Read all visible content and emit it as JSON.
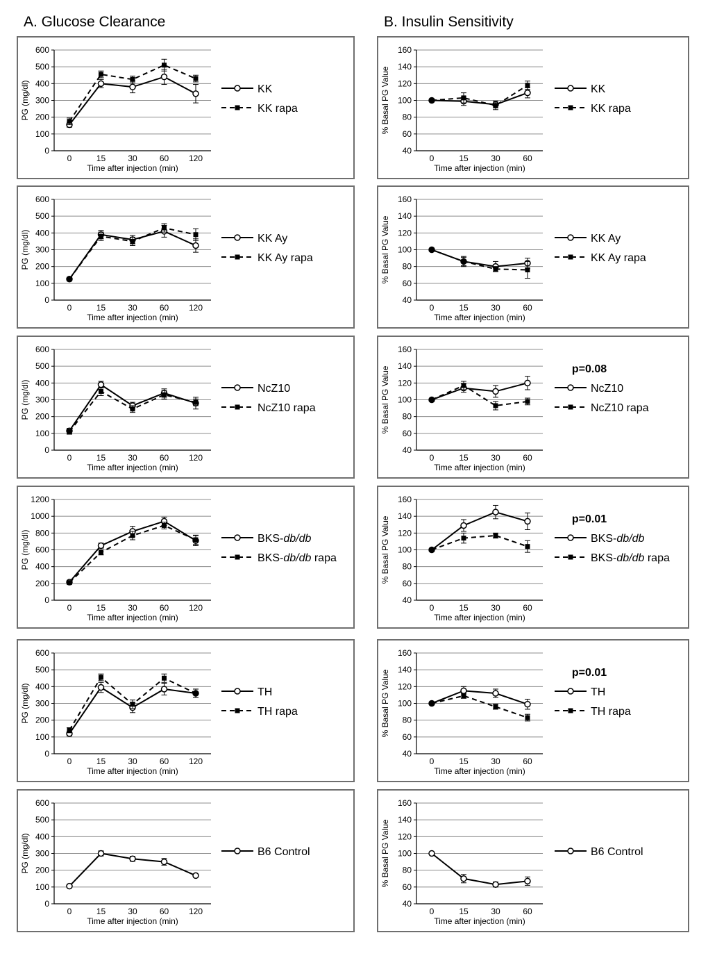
{
  "headers": {
    "a": "A. Glucose Clearance",
    "b": "B. Insulin Sensitivity"
  },
  "chart_data": [
    {
      "type": "line",
      "panel": "A",
      "x": [
        "0",
        "15",
        "30",
        "60",
        "120"
      ],
      "ylabel": "PG (mg/dl)",
      "xlabel": "Time after injection (min)",
      "ylim": [
        0,
        600
      ],
      "yticks": [
        0,
        100,
        200,
        300,
        400,
        500,
        600
      ],
      "pvalue": "",
      "series": [
        {
          "name": "KK",
          "style": "open-circle-solid",
          "values": [
            155,
            400,
            380,
            440,
            340
          ],
          "errors": [
            15,
            25,
            35,
            45,
            55
          ]
        },
        {
          "name": "KK rapa",
          "style": "filled-square-dashed",
          "values": [
            175,
            455,
            425,
            510,
            430
          ],
          "errors": [
            20,
            20,
            20,
            35,
            20
          ]
        }
      ]
    },
    {
      "type": "line",
      "panel": "B",
      "x": [
        "0",
        "15",
        "30",
        "60"
      ],
      "ylabel": "% Basal PG Value",
      "xlabel": "Time after injection (min)",
      "ylim": [
        40,
        160
      ],
      "yticks": [
        40,
        60,
        80,
        100,
        120,
        140,
        160
      ],
      "pvalue": "",
      "series": [
        {
          "name": "KK",
          "style": "open-circle-solid",
          "values": [
            100,
            99,
            95,
            109
          ],
          "errors": [
            0,
            5,
            4,
            6
          ]
        },
        {
          "name": "KK rapa",
          "style": "filled-square-dashed",
          "values": [
            100,
            103,
            94,
            118
          ],
          "errors": [
            0,
            6,
            5,
            5
          ]
        }
      ]
    },
    {
      "type": "line",
      "panel": "A",
      "x": [
        "0",
        "15",
        "30",
        "60",
        "120"
      ],
      "ylabel": "PG (mg/dl)",
      "xlabel": "Time after injection (min)",
      "ylim": [
        0,
        600
      ],
      "yticks": [
        0,
        100,
        200,
        300,
        400,
        500,
        600
      ],
      "pvalue": "",
      "series": [
        {
          "name": "KK Ay",
          "style": "open-circle-solid",
          "values": [
            125,
            390,
            360,
            410,
            325
          ],
          "errors": [
            10,
            25,
            25,
            35,
            40
          ]
        },
        {
          "name": "KK Ay rapa",
          "style": "filled-square-dashed",
          "values": [
            125,
            380,
            350,
            430,
            390
          ],
          "errors": [
            10,
            25,
            25,
            25,
            35
          ]
        }
      ]
    },
    {
      "type": "line",
      "panel": "B",
      "x": [
        "0",
        "15",
        "30",
        "60"
      ],
      "ylabel": "% Basal PG Value",
      "xlabel": "Time after injection (min)",
      "ylim": [
        40,
        160
      ],
      "yticks": [
        40,
        60,
        80,
        100,
        120,
        140,
        160
      ],
      "pvalue": "",
      "series": [
        {
          "name": "KK Ay",
          "style": "open-circle-solid",
          "values": [
            100,
            86,
            80,
            84
          ],
          "errors": [
            0,
            6,
            6,
            6
          ]
        },
        {
          "name": "KK Ay rapa",
          "style": "filled-square-dashed",
          "values": [
            100,
            86,
            77,
            76
          ],
          "errors": [
            0,
            5,
            3,
            10
          ]
        }
      ]
    },
    {
      "type": "line",
      "panel": "A",
      "x": [
        "0",
        "15",
        "30",
        "60",
        "120"
      ],
      "ylabel": "PG (mg/dl)",
      "xlabel": "Time after injection (min)",
      "ylim": [
        0,
        600
      ],
      "yticks": [
        0,
        100,
        200,
        300,
        400,
        500,
        600
      ],
      "pvalue": "",
      "series": [
        {
          "name": "NcZ10",
          "style": "open-circle-solid",
          "values": [
            115,
            390,
            265,
            340,
            280
          ],
          "errors": [
            15,
            20,
            20,
            25,
            35
          ]
        },
        {
          "name": "NcZ10 rapa",
          "style": "filled-square-dashed",
          "values": [
            110,
            350,
            245,
            330,
            285
          ],
          "errors": [
            15,
            25,
            20,
            25,
            20
          ]
        }
      ]
    },
    {
      "type": "line",
      "panel": "B",
      "x": [
        "0",
        "15",
        "30",
        "60"
      ],
      "ylabel": "% Basal PG Value",
      "xlabel": "Time after injection (min)",
      "ylim": [
        40,
        160
      ],
      "yticks": [
        40,
        60,
        80,
        100,
        120,
        140,
        160
      ],
      "pvalue": "p=0.08",
      "series": [
        {
          "name": "NcZ10",
          "style": "open-circle-solid",
          "values": [
            100,
            114,
            110,
            120
          ],
          "errors": [
            0,
            5,
            7,
            8
          ]
        },
        {
          "name": "NcZ10 rapa",
          "style": "filled-square-dashed",
          "values": [
            100,
            117,
            93,
            98
          ],
          "errors": [
            0,
            5,
            5,
            4
          ]
        }
      ]
    },
    {
      "type": "line",
      "panel": "A",
      "x": [
        "0",
        "15",
        "30",
        "60",
        "120"
      ],
      "ylabel": "PG (mg/dl)",
      "xlabel": "Time after injection (min)",
      "ylim": [
        0,
        1200
      ],
      "yticks": [
        0,
        200,
        400,
        600,
        800,
        1000,
        1200
      ],
      "pvalue": "",
      "series": [
        {
          "name": "BKS-db/db",
          "legend_prefix": "BKS-",
          "legend_italic": "db/db",
          "legend_suffix": "",
          "style": "open-circle-solid",
          "values": [
            215,
            650,
            820,
            940,
            710
          ],
          "errors": [
            20,
            30,
            60,
            50,
            60
          ]
        },
        {
          "name": "BKS-db/db rapa",
          "legend_prefix": "BKS-",
          "legend_italic": "db/db",
          "legend_suffix": " rapa",
          "style": "filled-square-dashed",
          "values": [
            210,
            570,
            770,
            890,
            720
          ],
          "errors": [
            20,
            30,
            50,
            40,
            55
          ]
        }
      ]
    },
    {
      "type": "line",
      "panel": "B",
      "x": [
        "0",
        "15",
        "30",
        "60"
      ],
      "ylabel": "% Basal PG Value",
      "xlabel": "Time after injection (min)",
      "ylim": [
        40,
        160
      ],
      "yticks": [
        40,
        60,
        80,
        100,
        120,
        140,
        160
      ],
      "pvalue": "p=0.01",
      "series": [
        {
          "name": "BKS-db/db",
          "legend_prefix": "BKS-",
          "legend_italic": "db/db",
          "legend_suffix": "",
          "style": "open-circle-solid",
          "values": [
            100,
            129,
            145,
            134
          ],
          "errors": [
            0,
            7,
            8,
            10
          ]
        },
        {
          "name": "BKS-db/db rapa",
          "legend_prefix": "BKS-",
          "legend_italic": "db/db",
          "legend_suffix": " rapa",
          "style": "filled-square-dashed",
          "values": [
            100,
            114,
            117,
            104
          ],
          "errors": [
            0,
            6,
            3,
            7
          ]
        }
      ]
    },
    {
      "type": "line",
      "panel": "A",
      "x": [
        "0",
        "15",
        "30",
        "60",
        "120"
      ],
      "ylabel": "PG (mg/dl)",
      "xlabel": "Time after injection (min)",
      "ylim": [
        0,
        600
      ],
      "yticks": [
        0,
        100,
        200,
        300,
        400,
        500,
        600
      ],
      "pvalue": "",
      "series": [
        {
          "name": "TH",
          "style": "open-circle-solid",
          "values": [
            120,
            395,
            275,
            385,
            360
          ],
          "errors": [
            15,
            30,
            30,
            35,
            25
          ]
        },
        {
          "name": "TH rapa",
          "style": "filled-square-dashed",
          "values": [
            140,
            455,
            295,
            450,
            360
          ],
          "errors": [
            15,
            20,
            25,
            25,
            25
          ]
        }
      ]
    },
    {
      "type": "line",
      "panel": "B",
      "x": [
        "0",
        "15",
        "30",
        "60"
      ],
      "ylabel": "% Basal PG Value",
      "xlabel": "Time after injection (min)",
      "ylim": [
        40,
        160
      ],
      "yticks": [
        40,
        60,
        80,
        100,
        120,
        140,
        160
      ],
      "pvalue": "p=0.01",
      "series": [
        {
          "name": "TH",
          "style": "open-circle-solid",
          "values": [
            100,
            115,
            112,
            99
          ],
          "errors": [
            0,
            5,
            5,
            6
          ]
        },
        {
          "name": "TH rapa",
          "style": "filled-square-dashed",
          "values": [
            100,
            109,
            96,
            83
          ],
          "errors": [
            0,
            3,
            3,
            4
          ]
        }
      ]
    },
    {
      "type": "line",
      "panel": "A",
      "x": [
        "0",
        "15",
        "30",
        "60",
        "120"
      ],
      "ylabel": "PG (mg/dl)",
      "xlabel": "Time after injection (min)",
      "ylim": [
        0,
        600
      ],
      "yticks": [
        0,
        100,
        200,
        300,
        400,
        500,
        600
      ],
      "pvalue": "",
      "series": [
        {
          "name": "B6 Control",
          "style": "open-circle-solid",
          "values": [
            105,
            300,
            268,
            250,
            168
          ],
          "errors": [
            10,
            15,
            15,
            20,
            10
          ]
        }
      ]
    },
    {
      "type": "line",
      "panel": "B",
      "x": [
        "0",
        "15",
        "30",
        "60"
      ],
      "ylabel": "% Basal PG Value",
      "xlabel": "Time after injection (min)",
      "ylim": [
        40,
        160
      ],
      "yticks": [
        40,
        60,
        80,
        100,
        120,
        140,
        160
      ],
      "pvalue": "",
      "series": [
        {
          "name": "B6 Control",
          "style": "open-circle-solid",
          "values": [
            100,
            70,
            63,
            67
          ],
          "errors": [
            0,
            5,
            3,
            5
          ]
        }
      ]
    }
  ]
}
